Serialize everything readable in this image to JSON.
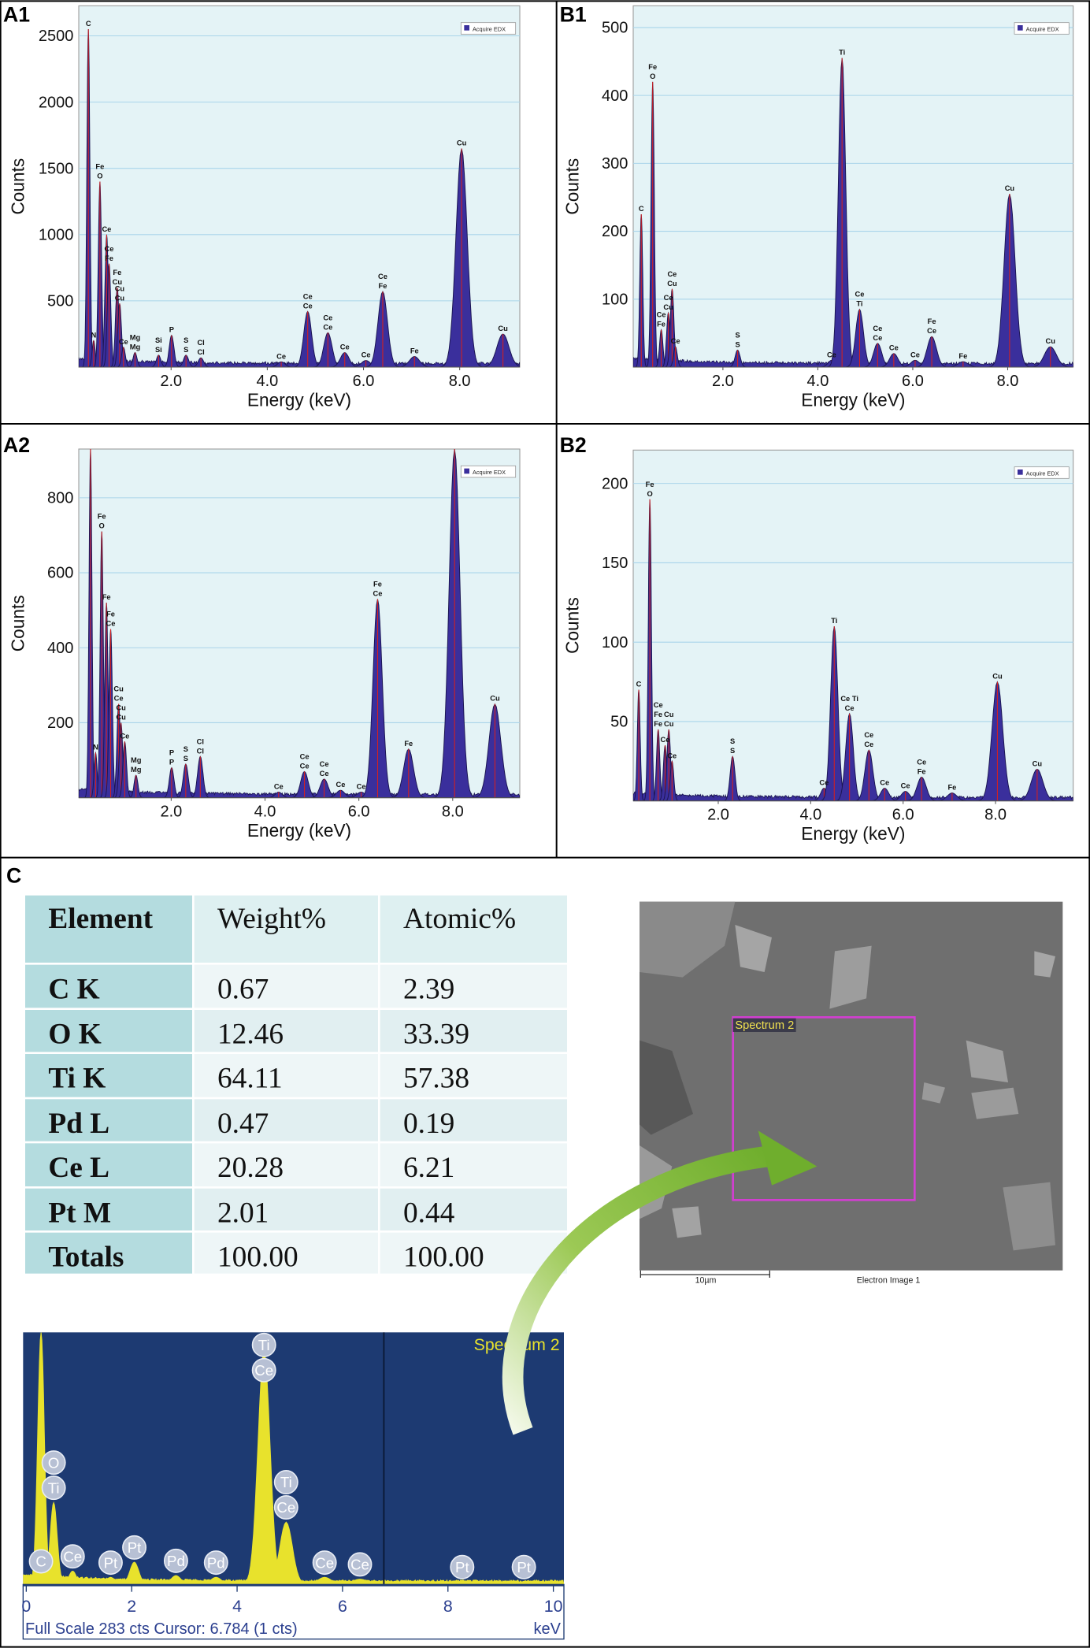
{
  "chart_data": [
    {
      "type": "spectrum",
      "panel": "A1",
      "ylabel": "Counts",
      "xlabel": "Energy (keV)",
      "legend": "Acquire EDX",
      "grid": true,
      "color": "#3a2f9c",
      "xlim": [
        0.08,
        9.25
      ],
      "ylim": [
        0,
        2727
      ],
      "xticks": [
        {
          "value": 2,
          "label": "2.0"
        },
        {
          "value": 4,
          "label": "4.0"
        },
        {
          "value": 6,
          "label": "6.0"
        },
        {
          "value": 8,
          "label": "8.0"
        }
      ],
      "yticks": [
        500,
        1000,
        1500,
        2000,
        2500
      ],
      "peaks": {
        "x": [
          0.28,
          0.39,
          0.52,
          0.66,
          0.71,
          0.88,
          0.93,
          1.01,
          1.25,
          1.74,
          2.01,
          2.31,
          2.62,
          4.29,
          4.84,
          5.26,
          5.61,
          6.05,
          6.4,
          7.06,
          8.04,
          8.9
        ],
        "values": [
          2550,
          200,
          1400,
          1000,
          780,
          600,
          480,
          150,
          110,
          90,
          240,
          90,
          70,
          40,
          420,
          260,
          110,
          50,
          570,
          80,
          1650,
          250
        ],
        "labels": [
          [
            "C"
          ],
          [
            "N"
          ],
          [
            "Fe",
            "O"
          ],
          [
            "Ce"
          ],
          [
            "Ce",
            "Fe"
          ],
          [
            "Fe",
            "Cu"
          ],
          [
            "Cu",
            "Cu"
          ],
          [
            "Ce"
          ],
          [
            "Mg",
            "Mg"
          ],
          [
            "Si",
            "Si"
          ],
          [
            "P"
          ],
          [
            "S",
            "S"
          ],
          [
            "Cl",
            "Cl"
          ],
          [
            "Ce"
          ],
          [
            "Ce",
            "Ce"
          ],
          [
            "Ce",
            "Ce"
          ],
          [
            "Ce"
          ],
          [
            "Ce"
          ],
          [
            "Ce",
            "Fe"
          ],
          [
            "Fe"
          ],
          [
            "Cu"
          ],
          [
            "Cu"
          ]
        ]
      }
    },
    {
      "type": "spectrum",
      "panel": "B1",
      "ylabel": "Counts",
      "xlabel": "Energy (keV)",
      "legend": "Acquire EDX",
      "grid": true,
      "color": "#3a2f9c",
      "xlim": [
        0.11,
        9.38
      ],
      "ylim": [
        0,
        532
      ],
      "xticks": [
        {
          "value": 2,
          "label": "2.0"
        },
        {
          "value": 4,
          "label": "4.0"
        },
        {
          "value": 6,
          "label": "6.0"
        },
        {
          "value": 8,
          "label": "8.0"
        }
      ],
      "yticks": [
        100,
        200,
        300,
        400,
        500
      ],
      "peaks": {
        "x": [
          0.28,
          0.52,
          0.7,
          0.85,
          0.93,
          1.0,
          2.31,
          4.29,
          4.51,
          4.88,
          5.26,
          5.6,
          6.05,
          6.4,
          7.06,
          8.04,
          8.9
        ],
        "values": [
          225,
          420,
          55,
          80,
          115,
          30,
          25,
          10,
          455,
          85,
          35,
          20,
          10,
          45,
          8,
          255,
          30
        ],
        "labels": [
          [
            "C"
          ],
          [
            "Fe",
            "O"
          ],
          [
            "Ce",
            "Fe"
          ],
          [
            "Ce",
            "Cu"
          ],
          [
            "Ce",
            "Cu"
          ],
          [
            "Ce"
          ],
          [
            "S",
            "S"
          ],
          [
            "Ce"
          ],
          [
            "Ti"
          ],
          [
            "Ce",
            "Ti"
          ],
          [
            "Ce",
            "Ce"
          ],
          [
            "Ce"
          ],
          [
            "Ce"
          ],
          [
            "Fe",
            "Ce"
          ],
          [
            "Fe"
          ],
          [
            "Cu"
          ],
          [
            "Cu"
          ]
        ]
      }
    },
    {
      "type": "spectrum",
      "panel": "A2",
      "ylabel": "Counts",
      "xlabel": "Energy (keV)",
      "legend": "Acquire EDX",
      "grid": true,
      "color": "#3a2f9c",
      "xlim": [
        0.03,
        9.43
      ],
      "ylim": [
        0,
        930
      ],
      "xticks": [
        {
          "value": 2,
          "label": "2.0"
        },
        {
          "value": 4,
          "label": "4.0"
        },
        {
          "value": 6,
          "label": "6.0"
        },
        {
          "value": 8,
          "label": "8.0"
        }
      ],
      "yticks": [
        200,
        400,
        600,
        800
      ],
      "peaks": {
        "x": [
          0.28,
          0.39,
          0.52,
          0.62,
          0.71,
          0.88,
          0.93,
          1.01,
          1.25,
          2.01,
          2.31,
          2.62,
          4.29,
          4.84,
          5.26,
          5.61,
          6.05,
          6.4,
          7.06,
          8.04,
          8.9
        ],
        "values": [
          930,
          120,
          710,
          520,
          450,
          250,
          200,
          150,
          60,
          80,
          90,
          110,
          15,
          70,
          50,
          20,
          15,
          530,
          130,
          930,
          250
        ],
        "labels": [
          [],
          [
            "N"
          ],
          [
            "Fe",
            "O"
          ],
          [
            "Fe"
          ],
          [
            "Fe",
            "Ce"
          ],
          [
            "Cu",
            "Ce"
          ],
          [
            "Cu",
            "Cu"
          ],
          [
            "Ce"
          ],
          [
            "Mg",
            "Mg"
          ],
          [
            "P",
            "P"
          ],
          [
            "S",
            "S"
          ],
          [
            "Cl",
            "Cl"
          ],
          [
            "Ce"
          ],
          [
            "Ce",
            "Ce"
          ],
          [
            "Ce",
            "Ce"
          ],
          [
            "Ce"
          ],
          [
            "Ce"
          ],
          [
            "Fe",
            "Ce"
          ],
          [
            "Fe"
          ],
          [],
          [
            "Cu"
          ]
        ]
      }
    },
    {
      "type": "spectrum",
      "panel": "B2",
      "ylabel": "Counts",
      "xlabel": "Energy (keV)",
      "legend": "Acquire EDX",
      "grid": true,
      "color": "#3a2f9c",
      "xlim": [
        0.16,
        9.68
      ],
      "ylim": [
        0,
        221
      ],
      "xticks": [
        {
          "value": 2,
          "label": "2.0"
        },
        {
          "value": 4,
          "label": "4.0"
        },
        {
          "value": 6,
          "label": "6.0"
        },
        {
          "value": 8,
          "label": "8.0"
        }
      ],
      "yticks": [
        50,
        100,
        150,
        200
      ],
      "peaks": {
        "x": [
          0.28,
          0.52,
          0.7,
          0.85,
          0.93,
          1.0,
          2.31,
          4.29,
          4.51,
          4.84,
          5.26,
          5.6,
          6.05,
          6.4,
          7.06,
          8.04,
          8.9
        ],
        "values": [
          70,
          190,
          45,
          35,
          45,
          25,
          28,
          8,
          110,
          55,
          32,
          8,
          6,
          15,
          5,
          75,
          20
        ],
        "labels": [
          [
            "C"
          ],
          [
            "Fe",
            "O"
          ],
          [
            "Ce",
            "Fe",
            "Fe"
          ],
          [
            "Ce"
          ],
          [
            "Cu",
            "Cu"
          ],
          [
            "Ce"
          ],
          [
            "S",
            "S"
          ],
          [
            "Ce"
          ],
          [
            "Ti"
          ],
          [
            "Ce Ti",
            "Ce"
          ],
          [
            "Ce",
            "Ce"
          ],
          [
            "Ce"
          ],
          [
            "Ce"
          ],
          [
            "Ce",
            "Fe"
          ],
          [
            "Fe"
          ],
          [
            "Cu"
          ],
          [
            "Cu"
          ]
        ]
      }
    },
    {
      "type": "spectrum",
      "panel": "C",
      "title": "Spectrum 2",
      "footer": "Full Scale 283 cts Cursor: 6.784  (1 cts)",
      "unit": "keV",
      "color": "#e8e22c",
      "background": "#1d3a72",
      "label_style": "circle",
      "cursor": 6.784,
      "xlim": [
        -0.06,
        10.2
      ],
      "ylim": [
        0,
        283
      ],
      "xticks": [
        0,
        2,
        4,
        6,
        8,
        10
      ],
      "peaks": {
        "x": [
          0.28,
          0.52,
          0.88,
          1.6,
          2.05,
          2.84,
          3.6,
          4.51,
          4.93,
          5.66,
          6.33,
          8.27,
          9.44
        ],
        "values": [
          283,
          92,
          15,
          8,
          25,
          10,
          8,
          262,
          70,
          8,
          6,
          3,
          3
        ],
        "labels": [
          [
            "C"
          ],
          [
            "O",
            "Ti"
          ],
          [
            "Ce"
          ],
          [
            "Pt"
          ],
          [
            "Pt"
          ],
          [
            "Pd"
          ],
          [
            "Pd"
          ],
          [
            "Ti",
            "Ce"
          ],
          [
            "Ti",
            "Ce"
          ],
          [
            "Ce"
          ],
          [
            "Ce"
          ],
          [
            "Pt"
          ],
          [
            "Pt"
          ]
        ]
      }
    }
  ],
  "table": {
    "header": [
      "Element",
      "Weight%",
      "Atomic%"
    ],
    "rows": [
      [
        "C K",
        "0.67",
        "2.39"
      ],
      [
        "O K",
        "12.46",
        "33.39"
      ],
      [
        "Ti K",
        "64.11",
        "57.38"
      ],
      [
        "Pd L",
        "0.47",
        "0.19"
      ],
      [
        "Ce L",
        "20.28",
        "6.21"
      ],
      [
        "Pt M",
        "2.01",
        "0.44"
      ],
      [
        "Totals",
        "100.00",
        "100.00"
      ]
    ]
  },
  "sem_image": {
    "region_label": "Spectrum 2",
    "scale_bar": "10µm",
    "caption": "Electron Image 1"
  }
}
